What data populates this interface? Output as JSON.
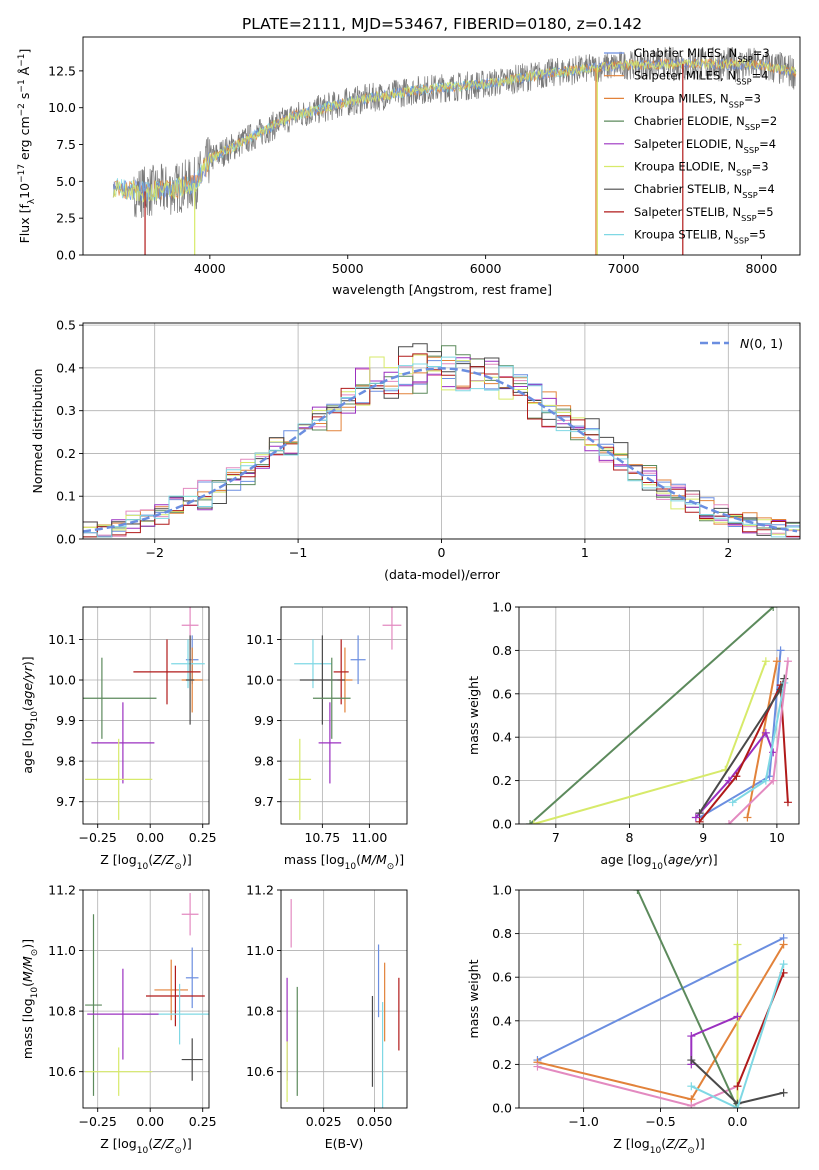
{
  "colors": {
    "Chabrier MILES": "#6b8ee0",
    "Salpeter MILES": "#e2823a",
    "Kroupa MILES": "#e2823a",
    "Chabrier ELODIE": "#5c8a5c",
    "Salpeter ELODIE": "#9b30c0",
    "Kroupa ELODIE": "#d7ea6a",
    "Chabrier STELIB": "#4a4a4a",
    "Salpeter STELIB": "#b01a1a",
    "Kroupa STELIB": "#7fd8e4",
    "pink": "#e38ac0",
    "dark": "#333333"
  },
  "chart_data": [
    {
      "id": "spectrum",
      "type": "line",
      "title": "PLATE=2111, MJD=53467, FIBERID=0180, z=0.142",
      "xlabel": "wavelength [Angstrom, rest frame]",
      "ylabel": "Flux [fλ10⁻¹⁷ erg cm⁻² s⁻¹ Å⁻¹]",
      "xlim": [
        3080,
        8280
      ],
      "ylim": [
        0,
        14.8
      ],
      "xticks": [
        4000,
        5000,
        6000,
        7000,
        8000
      ],
      "yticks": [
        0.0,
        2.5,
        5.0,
        7.5,
        10.0,
        12.5
      ],
      "legend_position": "right",
      "legend": [
        {
          "label": "Chabrier MILES, N",
          "sub": "SSP",
          "tail": "=3",
          "color": "#6b8ee0"
        },
        {
          "label": "Salpeter MILES, N",
          "sub": "SSP",
          "tail": "=4",
          "color": "#e2823a"
        },
        {
          "label": "Kroupa MILES, N",
          "sub": "SSP",
          "tail": "=3",
          "color": "#e2823a"
        },
        {
          "label": "Chabrier ELODIE, N",
          "sub": "SSP",
          "tail": "=2",
          "color": "#5c8a5c"
        },
        {
          "label": "Salpeter ELODIE, N",
          "sub": "SSP",
          "tail": "=4",
          "color": "#9b30c0"
        },
        {
          "label": "Kroupa ELODIE, N",
          "sub": "SSP",
          "tail": "=3",
          "color": "#d7ea6a"
        },
        {
          "label": "Chabrier STELIB, N",
          "sub": "SSP",
          "tail": "=4",
          "color": "#4a4a4a"
        },
        {
          "label": "Salpeter STELIB, N",
          "sub": "SSP",
          "tail": "=5",
          "color": "#b01a1a"
        },
        {
          "label": "Kroupa STELIB, N",
          "sub": "SSP",
          "tail": "=5",
          "color": "#7fd8e4"
        }
      ],
      "data_trend": [
        [
          3300,
          4.6
        ],
        [
          3500,
          4.3
        ],
        [
          3700,
          4.4
        ],
        [
          3900,
          4.9
        ],
        [
          4000,
          6.5
        ],
        [
          4300,
          8.0
        ],
        [
          4600,
          9.4
        ],
        [
          5000,
          10.4
        ],
        [
          5500,
          11.2
        ],
        [
          6000,
          11.6
        ],
        [
          6500,
          12.4
        ],
        [
          7000,
          12.9
        ],
        [
          7500,
          13.0
        ],
        [
          8000,
          12.9
        ],
        [
          8250,
          12.4
        ]
      ],
      "vertical_drops": [
        [
          3530,
          "#b01a1a"
        ],
        [
          3890,
          "#d7ea6a"
        ],
        [
          6800,
          "#e2823a"
        ],
        [
          6810,
          "#d7ea6a"
        ],
        [
          7430,
          "#b01a1a"
        ]
      ]
    },
    {
      "id": "residuals",
      "type": "step",
      "xlabel": "(data-model)/error",
      "ylabel": "Normed distribution",
      "xlim": [
        -2.5,
        2.5
      ],
      "ylim": [
        0,
        0.505
      ],
      "xticks": [
        -2,
        -1,
        0,
        1,
        2
      ],
      "yticks": [
        0.0,
        0.1,
        0.2,
        0.3,
        0.4,
        0.5
      ],
      "bin_width": 0.1,
      "reference_curve": {
        "label": "N(0, 1)",
        "mu": 0,
        "sigma": 1,
        "color": "#6b8ee0"
      }
    },
    {
      "id": "age_vs_Z",
      "type": "errorbar",
      "xlabel": "Z [log10(Z/Z⊙)]",
      "ylabel": "age [log10(age/yr)]",
      "xlim": [
        -0.32,
        0.28
      ],
      "ylim": [
        9.645,
        10.18
      ],
      "xticks": [
        -0.25,
        0.0,
        0.25
      ],
      "xticklabels": [
        "−0.25",
        "0.00",
        "0.25"
      ],
      "yticks": [
        9.7,
        9.8,
        9.9,
        10.0,
        10.1
      ],
      "points": [
        {
          "x": 0.19,
          "xerr": 0.04,
          "y": 10.135,
          "yerr": 0.06,
          "color": "#e38ac0"
        },
        {
          "x": 0.2,
          "xerr": 0.03,
          "y": 10.05,
          "yerr": 0.06,
          "color": "#6b8ee0"
        },
        {
          "x": 0.2,
          "xerr": 0.05,
          "y": 10.0,
          "yerr": 0.08,
          "color": "#e2823a"
        },
        {
          "x": 0.18,
          "xerr": 0.08,
          "y": 10.04,
          "yerr": 0.06,
          "color": "#7fd8e4"
        },
        {
          "x": 0.19,
          "xerr": 0.02,
          "y": 10.0,
          "yerr": 0.11,
          "color": "#4a4a4a"
        },
        {
          "x": 0.08,
          "xerr": 0.16,
          "y": 10.02,
          "yerr": 0.08,
          "color": "#b01a1a"
        },
        {
          "x": -0.23,
          "xerr": 0.26,
          "y": 9.955,
          "yerr": 0.1,
          "color": "#5c8a5c"
        },
        {
          "x": -0.13,
          "xerr": 0.15,
          "y": 9.845,
          "yerr": 0.1,
          "color": "#9b30c0"
        },
        {
          "x": -0.15,
          "xerr": 0.16,
          "y": 9.755,
          "yerr": 0.1,
          "color": "#d7ea6a"
        }
      ]
    },
    {
      "id": "age_vs_mass",
      "type": "errorbar",
      "xlabel": "mass [log10(M/M⊙)]",
      "ylabel": "",
      "xlim": [
        10.53,
        11.2
      ],
      "ylim": [
        9.645,
        10.18
      ],
      "xticks": [
        10.5,
        10.75,
        11.0
      ],
      "xticklabels": [
        "10.50",
        "10.75",
        "11.00"
      ],
      "yticks": [
        9.7,
        9.8,
        9.9,
        10.0,
        10.1
      ],
      "points": [
        {
          "x": 11.12,
          "xerr": 0.05,
          "y": 10.135,
          "yerr": 0.06,
          "color": "#e38ac0"
        },
        {
          "x": 10.94,
          "xerr": 0.04,
          "y": 10.05,
          "yerr": 0.06,
          "color": "#6b8ee0"
        },
        {
          "x": 10.87,
          "xerr": 0.04,
          "y": 10.0,
          "yerr": 0.08,
          "color": "#e2823a"
        },
        {
          "x": 10.7,
          "xerr": 0.1,
          "y": 10.04,
          "yerr": 0.06,
          "color": "#7fd8e4"
        },
        {
          "x": 10.75,
          "xerr": 0.12,
          "y": 10.0,
          "yerr": 0.11,
          "color": "#4a4a4a"
        },
        {
          "x": 10.85,
          "xerr": 0.04,
          "y": 10.02,
          "yerr": 0.08,
          "color": "#b01a1a"
        },
        {
          "x": 10.8,
          "xerr": 0.1,
          "y": 9.955,
          "yerr": 0.1,
          "color": "#5c8a5c"
        },
        {
          "x": 10.79,
          "xerr": 0.06,
          "y": 9.845,
          "yerr": 0.1,
          "color": "#9b30c0"
        },
        {
          "x": 10.63,
          "xerr": 0.06,
          "y": 9.755,
          "yerr": 0.1,
          "color": "#d7ea6a"
        }
      ]
    },
    {
      "id": "weight_vs_age",
      "type": "line",
      "xlabel": "age [log10(age/yr)]",
      "ylabel": "mass weight",
      "xlim": [
        6.5,
        10.3
      ],
      "ylim": [
        0,
        1.0
      ],
      "xticks": [
        7,
        8,
        9,
        10
      ],
      "yticks": [
        0.0,
        0.2,
        0.4,
        0.6,
        0.8,
        1.0
      ],
      "series": [
        {
          "color": "#5c8a5c",
          "points": [
            [
              6.65,
              0.0
            ],
            [
              9.95,
              1.0
            ]
          ]
        },
        {
          "color": "#d7ea6a",
          "points": [
            [
              6.7,
              0.0
            ],
            [
              9.3,
              0.25
            ],
            [
              9.85,
              0.75
            ]
          ]
        },
        {
          "color": "#6b8ee0",
          "points": [
            [
              8.95,
              0.03
            ],
            [
              9.9,
              0.22
            ],
            [
              10.05,
              0.8
            ]
          ]
        },
        {
          "color": "#e2823a",
          "points": [
            [
              9.6,
              0.03
            ],
            [
              10.0,
              0.75
            ]
          ]
        },
        {
          "color": "#9b30c0",
          "points": [
            [
              8.9,
              0.03
            ],
            [
              9.35,
              0.2
            ],
            [
              9.85,
              0.42
            ],
            [
              9.95,
              0.33
            ]
          ]
        },
        {
          "color": "#b01a1a",
          "points": [
            [
              8.95,
              0.01
            ],
            [
              9.45,
              0.22
            ],
            [
              10.05,
              0.64
            ],
            [
              10.15,
              0.1
            ]
          ]
        },
        {
          "color": "#4a4a4a",
          "points": [
            [
              8.95,
              0.05
            ],
            [
              10.05,
              0.62
            ],
            [
              10.1,
              0.67
            ]
          ]
        },
        {
          "color": "#7fd8e4",
          "points": [
            [
              9.4,
              0.1
            ],
            [
              9.85,
              0.2
            ],
            [
              10.1,
              0.65
            ]
          ]
        },
        {
          "color": "#e38ac0",
          "points": [
            [
              9.35,
              0.0
            ],
            [
              9.95,
              0.2
            ],
            [
              10.15,
              0.75
            ]
          ]
        }
      ]
    },
    {
      "id": "mass_vs_Z",
      "type": "errorbar",
      "xlabel": "Z [log10(Z/Z⊙)]",
      "ylabel": "mass [log10(M/M⊙)]",
      "xlim": [
        -0.32,
        0.28
      ],
      "ylim": [
        10.48,
        11.2
      ],
      "xticks": [
        -0.25,
        0.0,
        0.25
      ],
      "xticklabels": [
        "−0.25",
        "0.00",
        "0.25"
      ],
      "yticks": [
        10.6,
        10.8,
        11.0,
        11.2
      ],
      "points": [
        {
          "x": 0.19,
          "xerr": 0.04,
          "y": 11.12,
          "yerr": 0.07,
          "color": "#e38ac0"
        },
        {
          "x": 0.2,
          "xerr": 0.03,
          "y": 10.91,
          "yerr": 0.1,
          "color": "#6b8ee0"
        },
        {
          "x": 0.1,
          "xerr": 0.08,
          "y": 10.87,
          "yerr": 0.1,
          "color": "#e2823a"
        },
        {
          "x": 0.12,
          "xerr": 0.14,
          "y": 10.85,
          "yerr": 0.1,
          "color": "#b01a1a"
        },
        {
          "x": 0.14,
          "xerr": 0.18,
          "y": 10.79,
          "yerr": 0.1,
          "color": "#7fd8e4"
        },
        {
          "x": -0.27,
          "xerr": 0.04,
          "y": 10.82,
          "yerr": 0.3,
          "color": "#5c8a5c"
        },
        {
          "x": -0.13,
          "xerr": 0.17,
          "y": 10.79,
          "yerr": 0.15,
          "color": "#9b30c0"
        },
        {
          "x": -0.15,
          "xerr": 0.16,
          "y": 10.6,
          "yerr": 0.08,
          "color": "#d7ea6a"
        },
        {
          "x": 0.2,
          "xerr": 0.05,
          "y": 10.64,
          "yerr": 0.07,
          "color": "#4a4a4a"
        }
      ]
    },
    {
      "id": "mass_vs_EBV",
      "type": "errorbar",
      "xlabel": "E(B-V)",
      "ylabel": "",
      "xlim": [
        0.004,
        0.066
      ],
      "ylim": [
        10.48,
        11.2
      ],
      "xticks": [
        0.025,
        0.05
      ],
      "xticklabels": [
        "0.025",
        "0.050"
      ],
      "yticks": [
        10.6,
        10.8,
        11.0,
        11.2
      ],
      "points": [
        {
          "x": 0.009,
          "y": 11.09,
          "yerr": 0.08,
          "color": "#e38ac0"
        },
        {
          "x": 0.007,
          "y": 10.74,
          "yerr": 0.17,
          "color": "#9b30c0"
        },
        {
          "x": 0.007,
          "y": 10.6,
          "yerr": 0.1,
          "color": "#d7ea6a"
        },
        {
          "x": 0.012,
          "y": 10.7,
          "yerr": 0.18,
          "color": "#5c8a5c"
        },
        {
          "x": 0.049,
          "y": 10.7,
          "yerr": 0.15,
          "color": "#4a4a4a"
        },
        {
          "x": 0.052,
          "y": 10.9,
          "yerr": 0.12,
          "color": "#6b8ee0"
        },
        {
          "x": 0.055,
          "y": 10.83,
          "yerr": 0.13,
          "color": "#e2823a"
        },
        {
          "x": 0.054,
          "y": 10.65,
          "yerr": 0.18,
          "color": "#7fd8e4"
        },
        {
          "x": 0.062,
          "y": 10.79,
          "yerr": 0.12,
          "color": "#b01a1a"
        }
      ]
    },
    {
      "id": "weight_vs_Z",
      "type": "line",
      "xlabel": "Z [log10(Z/Z⊙)]",
      "ylabel": "mass weight",
      "xlim": [
        -1.42,
        0.4
      ],
      "ylim": [
        0,
        1.0
      ],
      "xticks": [
        -1.0,
        -0.5,
        0.0
      ],
      "xticklabels": [
        "−1.0",
        "−0.5",
        "0.0"
      ],
      "yticks": [
        0.0,
        0.2,
        0.4,
        0.6,
        0.8,
        1.0
      ],
      "series": [
        {
          "color": "#6b8ee0",
          "points": [
            [
              -1.3,
              0.22
            ],
            [
              0.3,
              0.78
            ]
          ]
        },
        {
          "color": "#e2823a",
          "points": [
            [
              -1.3,
              0.21
            ],
            [
              -0.3,
              0.04
            ],
            [
              0.3,
              0.75
            ]
          ]
        },
        {
          "color": "#e38ac0",
          "points": [
            [
              -1.3,
              0.19
            ],
            [
              -0.3,
              0.01
            ],
            [
              0.0,
              0.1
            ]
          ]
        },
        {
          "color": "#5c8a5c",
          "points": [
            [
              -0.65,
              1.0
            ],
            [
              0.0,
              0.0
            ]
          ]
        },
        {
          "color": "#d7ea6a",
          "points": [
            [
              0.0,
              0.0
            ],
            [
              0.0,
              0.75
            ]
          ]
        },
        {
          "color": "#9b30c0",
          "points": [
            [
              -0.3,
              0.2
            ],
            [
              -0.3,
              0.33
            ],
            [
              0.0,
              0.42
            ]
          ]
        },
        {
          "color": "#b01a1a",
          "points": [
            [
              0.0,
              0.1
            ],
            [
              0.3,
              0.62
            ]
          ]
        },
        {
          "color": "#4a4a4a",
          "points": [
            [
              -0.3,
              0.22
            ],
            [
              0.0,
              0.02
            ],
            [
              0.3,
              0.07
            ]
          ]
        },
        {
          "color": "#7fd8e4",
          "points": [
            [
              -0.3,
              0.1
            ],
            [
              0.0,
              0.0
            ],
            [
              0.3,
              0.66
            ]
          ]
        }
      ]
    }
  ]
}
